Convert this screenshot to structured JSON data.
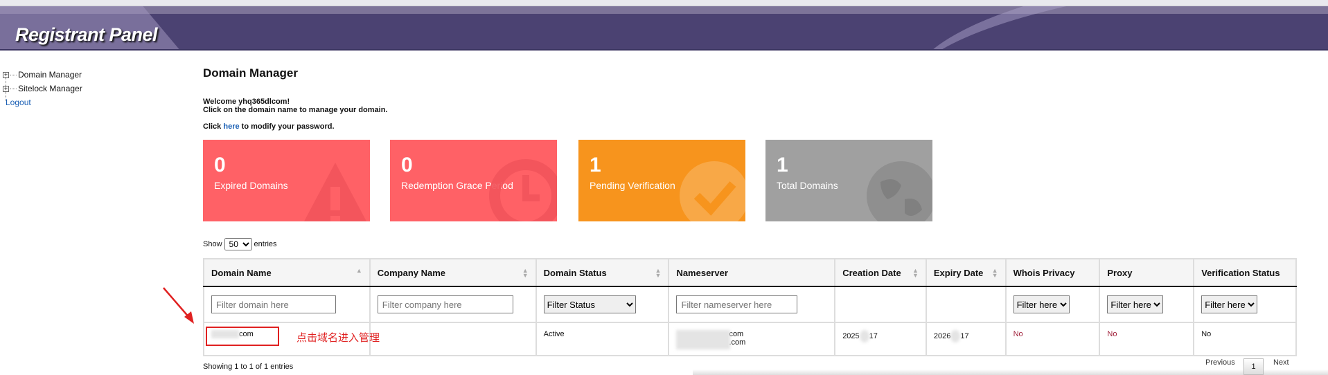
{
  "header": {
    "title": "Registrant Panel"
  },
  "sidebar": {
    "items": [
      {
        "label": "Domain Manager"
      },
      {
        "label": "Sitelock Manager"
      },
      {
        "label": "Logout"
      }
    ]
  },
  "page": {
    "title": "Domain Manager",
    "welcome": "Welcome yhq365dlcom!",
    "instruction": "Click on the domain name to manage your domain.",
    "password_prefix": "Click ",
    "password_link": "here",
    "password_suffix": " to modify your password."
  },
  "cards": [
    {
      "count": "0",
      "label": "Expired Domains",
      "color": "#ff6166",
      "icon": "warning-icon"
    },
    {
      "count": "0",
      "label": "Redemption Grace Period",
      "color": "#ff6166",
      "icon": "clock-icon"
    },
    {
      "count": "1",
      "label": "Pending Verification",
      "color": "#f7941d",
      "icon": "check-icon"
    },
    {
      "count": "1",
      "label": "Total Domains",
      "color": "#a0a0a0",
      "icon": "globe-icon"
    }
  ],
  "length": {
    "show": "Show",
    "value": "50",
    "entries": "entries"
  },
  "table": {
    "columns": [
      "Domain Name",
      "Company Name",
      "Domain Status",
      "Nameserver",
      "Creation Date",
      "Expiry Date",
      "Whois Privacy",
      "Proxy",
      "Verification Status"
    ],
    "filters": {
      "domain_placeholder": "Filter domain here",
      "company_placeholder": "Filter company here",
      "status": "Filter Status",
      "nameserver_placeholder": "Filter nameserver here",
      "whois": "Filter here",
      "proxy": "Filter here",
      "verification": "Filter here"
    },
    "rows": [
      {
        "domain": "com",
        "company": "",
        "status": "Active",
        "ns1": "com",
        "ns2": ".com",
        "created_a": "2025",
        "created_b": "17",
        "expiry_a": "2026",
        "expiry_b": "17",
        "whois": "No",
        "proxy": "No",
        "verification": "No"
      }
    ]
  },
  "annotation": {
    "text": "点击域名进入管理",
    "color": "#e02020"
  },
  "footer": {
    "info": "Showing 1 to 1 of 1 entries",
    "previous": "Previous",
    "page": "1",
    "next": "Next"
  }
}
